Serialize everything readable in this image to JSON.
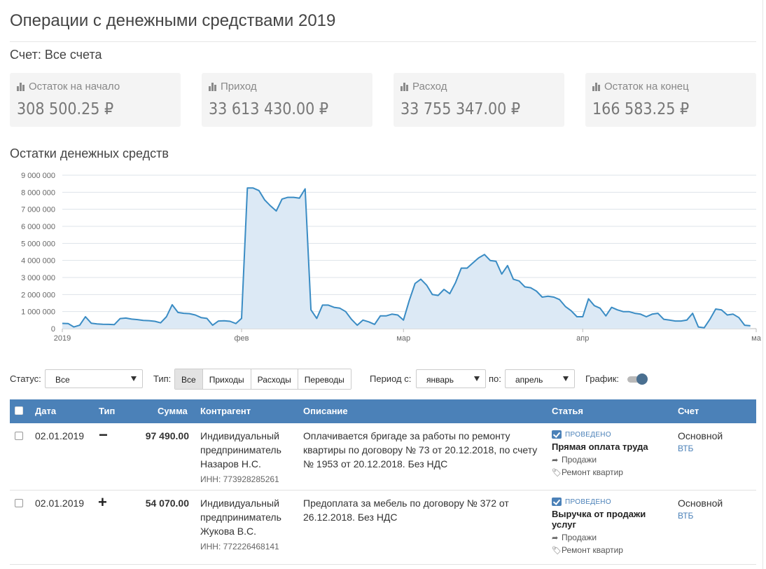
{
  "page_title": "Операции с денежными средствами 2019",
  "account_label": "Счет: Все счета",
  "cards": [
    {
      "label": "Остаток на начало",
      "value": "308 500.25 ₽"
    },
    {
      "label": "Приход",
      "value": "33 613 430.00 ₽"
    },
    {
      "label": "Расход",
      "value": "33 755 347.00 ₽"
    },
    {
      "label": "Остаток на конец",
      "value": "166 583.25 ₽"
    }
  ],
  "chart_title": "Остатки денежных средств",
  "chart_data": {
    "type": "area",
    "title": "Остатки денежных средств",
    "y_ticks": [
      "0",
      "1 000 000",
      "2 000 000",
      "3 000 000",
      "4 000 000",
      "5 000 000",
      "6 000 000",
      "7 000 000",
      "8 000 000",
      "9 000 000"
    ],
    "ylim": [
      0,
      9000000
    ],
    "x_labels": [
      "2019",
      "фев",
      "мар",
      "апр",
      "ма"
    ],
    "x_label_days": [
      1,
      32,
      60,
      91,
      121
    ],
    "xlim": [
      1,
      121
    ],
    "grid": true,
    "colors": {
      "line": "#3a8cc4",
      "fill": "#dce9f5"
    },
    "x": [
      1,
      2,
      3,
      4,
      5,
      6,
      7,
      8,
      9,
      10,
      11,
      12,
      13,
      14,
      15,
      16,
      17,
      18,
      19,
      20,
      21,
      22,
      23,
      24,
      25,
      26,
      27,
      28,
      29,
      30,
      31,
      32,
      33,
      34,
      35,
      36,
      37,
      38,
      39,
      40,
      41,
      42,
      43,
      44,
      45,
      46,
      47,
      48,
      49,
      50,
      51,
      52,
      53,
      54,
      55,
      56,
      57,
      58,
      59,
      60,
      61,
      62,
      63,
      64,
      65,
      66,
      67,
      68,
      69,
      70,
      71,
      72,
      73,
      74,
      75,
      76,
      77,
      78,
      79,
      80,
      81,
      82,
      83,
      84,
      85,
      86,
      87,
      88,
      89,
      90,
      91,
      92,
      93,
      94,
      95,
      96,
      97,
      98,
      99,
      100,
      101,
      102,
      103,
      104,
      105,
      106,
      107,
      108,
      109,
      110,
      111,
      112,
      113,
      114,
      115,
      116,
      117,
      118,
      119,
      120
    ],
    "values": [
      308500,
      300000,
      100000,
      200000,
      700000,
      320000,
      280000,
      260000,
      250000,
      240000,
      590000,
      620000,
      560000,
      530000,
      480000,
      470000,
      430000,
      340000,
      700000,
      1400000,
      950000,
      900000,
      880000,
      800000,
      650000,
      600000,
      200000,
      450000,
      460000,
      430000,
      300000,
      600000,
      8250000,
      8250000,
      8100000,
      7550000,
      7200000,
      6900000,
      7600000,
      7700000,
      7700000,
      7650000,
      8200000,
      1100000,
      600000,
      1380000,
      1380000,
      1250000,
      1200000,
      1000000,
      550000,
      200000,
      500000,
      400000,
      250000,
      750000,
      750000,
      850000,
      800000,
      500000,
      1650000,
      2650000,
      2900000,
      2550000,
      2000000,
      1950000,
      2300000,
      2050000,
      2700000,
      3550000,
      3550000,
      3850000,
      4150000,
      4350000,
      4000000,
      3950000,
      3200000,
      3700000,
      2900000,
      2800000,
      2450000,
      2400000,
      2200000,
      1850000,
      1900000,
      1850000,
      1700000,
      1300000,
      1050000,
      700000,
      700000,
      1750000,
      1350000,
      1200000,
      750000,
      1250000,
      1100000,
      1000000,
      1000000,
      900000,
      850000,
      700000,
      850000,
      900000,
      550000,
      500000,
      450000,
      450000,
      500000,
      900000,
      100000,
      50000,
      550000,
      1150000,
      1100000,
      800000,
      850000,
      650000,
      200000,
      166583
    ]
  },
  "filters": {
    "status_label": "Статус:",
    "status_value": "Все",
    "type_label": "Тип:",
    "type_options": [
      "Все",
      "Приходы",
      "Расходы",
      "Переводы"
    ],
    "period_from_label": "Период с:",
    "period_from_value": "январь",
    "period_to_label": "по:",
    "period_to_value": "апрель",
    "chart_toggle_label": "График:"
  },
  "table": {
    "headers": [
      "Дата",
      "Тип",
      "Сумма",
      "Контрагент",
      "Описание",
      "Статья",
      "Счет"
    ],
    "rows": [
      {
        "date": "02.01.2019",
        "type_sign": "−",
        "amount": "97 490.00",
        "contractor": "Индивидуальный предприниматель Назаров Н.С.",
        "inn": "ИНН: 773928285261",
        "description": "Оплачивается бригаде за работы по ремонту квартиры по договору № 73 от 20.12.2018, по счету № 1953 от 20.12.2018. Без НДС",
        "status": "ПРОВЕДЕНО",
        "article": "Прямая оплата труда",
        "direction": "Продажи",
        "tag": "Ремонт квартир",
        "account": "Основной",
        "bank": "ВТБ"
      },
      {
        "date": "02.01.2019",
        "type_sign": "+",
        "amount": "54 070.00",
        "contractor": "Индивидуальный предприниматель Жукова В.С.",
        "inn": "ИНН: 772226468141",
        "description": "Предоплата за мебель по договору № 372 от 26.12.2018. Без НДС",
        "status": "ПРОВЕДЕНО",
        "article": "Выручка от продажи услуг",
        "direction": "Продажи",
        "tag": "Ремонт квартир",
        "account": "Основной",
        "bank": "ВТБ"
      }
    ]
  }
}
